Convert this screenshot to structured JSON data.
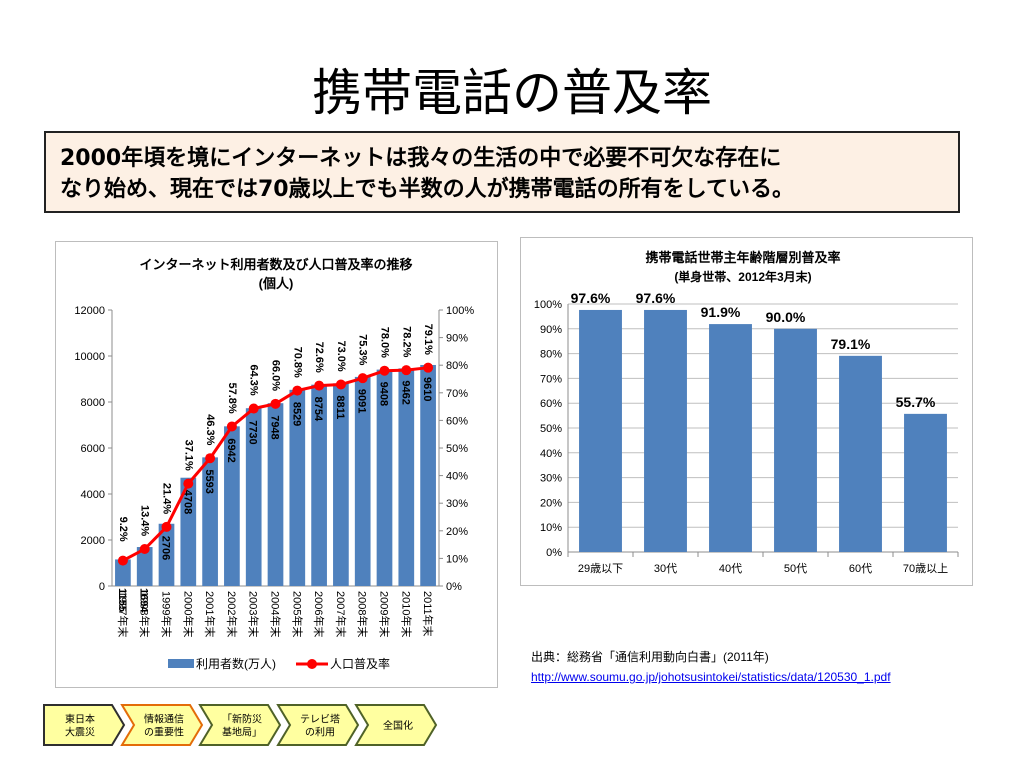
{
  "slide": {
    "title": "携帯電話の普及率",
    "callout_lines": [
      "2000年頃を境にインターネットは我々の生活の中で必要不可欠な存在に",
      "なり始め、現在では70歳以上でも半数の人が携帯電話の所有をしている。"
    ],
    "source_text": "出典：総務省「通信利用動向白書」(2011年)",
    "source_url": "http://www.soumu.go.jp/johotsusintokei/statistics/data/120530_1.pdf"
  },
  "nav_steps": [
    {
      "label": "東日本\n大震災",
      "fill": "#ffffa0",
      "border": "#2f2f2f"
    },
    {
      "label": "情報通信\nの重要性",
      "fill": "#ffffa0",
      "border": "#e36c09"
    },
    {
      "label": "「新防災\n基地局」",
      "fill": "#ffffa0",
      "border": "#4f6228"
    },
    {
      "label": "テレビ塔\nの利用",
      "fill": "#ffffa0",
      "border": "#4f6228"
    },
    {
      "label": "全国化",
      "fill": "#ffffa0",
      "border": "#4f6228"
    }
  ],
  "chart_data": [
    {
      "type": "bar",
      "title": "インターネット利用者数及び人口普及率の推移",
      "subtitle": "(個人)",
      "categories": [
        "1997年末",
        "1998年末",
        "1999年末",
        "2000年末",
        "2001年末",
        "2002年末",
        "2003年末",
        "2004年末",
        "2005年末",
        "2006年末",
        "2007年末",
        "2008年末",
        "2009年末",
        "2010年末",
        "2011年末"
      ],
      "series": [
        {
          "name": "利用者数(万人)",
          "type": "bar",
          "color": "#4f81bd",
          "values": [
            1155,
            1694,
            2706,
            4708,
            5593,
            6942,
            7730,
            7948,
            8529,
            8754,
            8811,
            9091,
            9408,
            9462,
            9610
          ],
          "labels": [
            "1155",
            "1694",
            "2706",
            "4708",
            "5593",
            "6942",
            "7730",
            "7948",
            "8529",
            "8754",
            "8811",
            "9091",
            "9408",
            "9462",
            "9610"
          ]
        },
        {
          "name": "人口普及率",
          "type": "line",
          "axis": "right",
          "color": "#ff0000",
          "values": [
            9.2,
            13.4,
            21.4,
            37.1,
            46.3,
            57.8,
            64.3,
            66.0,
            70.8,
            72.6,
            73.0,
            75.3,
            78.0,
            78.2,
            79.1
          ],
          "labels": [
            "9.2%",
            "13.4%",
            "21.4%",
            "37.1%",
            "46.3%",
            "57.8%",
            "64.3%",
            "66.0%",
            "70.8%",
            "72.6%",
            "73.0%",
            "75.3%",
            "78.0%",
            "78.2%",
            "79.1%"
          ]
        }
      ],
      "ylim": [
        0,
        12000
      ],
      "yticks": [
        "0",
        "2000",
        "4000",
        "6000",
        "8000",
        "10000",
        "12000"
      ],
      "y2lim": [
        0,
        100
      ],
      "y2ticks": [
        "0%",
        "10%",
        "20%",
        "30%",
        "40%",
        "50%",
        "60%",
        "70%",
        "80%",
        "90%",
        "100%"
      ],
      "grid": false,
      "legend": "bottom"
    },
    {
      "type": "bar",
      "title": "携帯電話世帯主年齢階層別普及率",
      "subtitle": "(単身世帯、2012年3月末)",
      "categories": [
        "29歳以下",
        "30代",
        "40代",
        "50代",
        "60代",
        "70歳以上"
      ],
      "values": [
        97.6,
        97.6,
        91.9,
        90.0,
        79.1,
        55.7
      ],
      "value_labels": [
        "97.6%",
        "97.6%",
        "91.9%",
        "90.0%",
        "79.1%",
        "55.7%"
      ],
      "ylim": [
        0,
        100
      ],
      "yticks": [
        "0%",
        "10%",
        "20%",
        "30%",
        "40%",
        "50%",
        "60%",
        "70%",
        "80%",
        "90%",
        "100%"
      ],
      "color": "#4f81bd",
      "grid": true
    }
  ]
}
